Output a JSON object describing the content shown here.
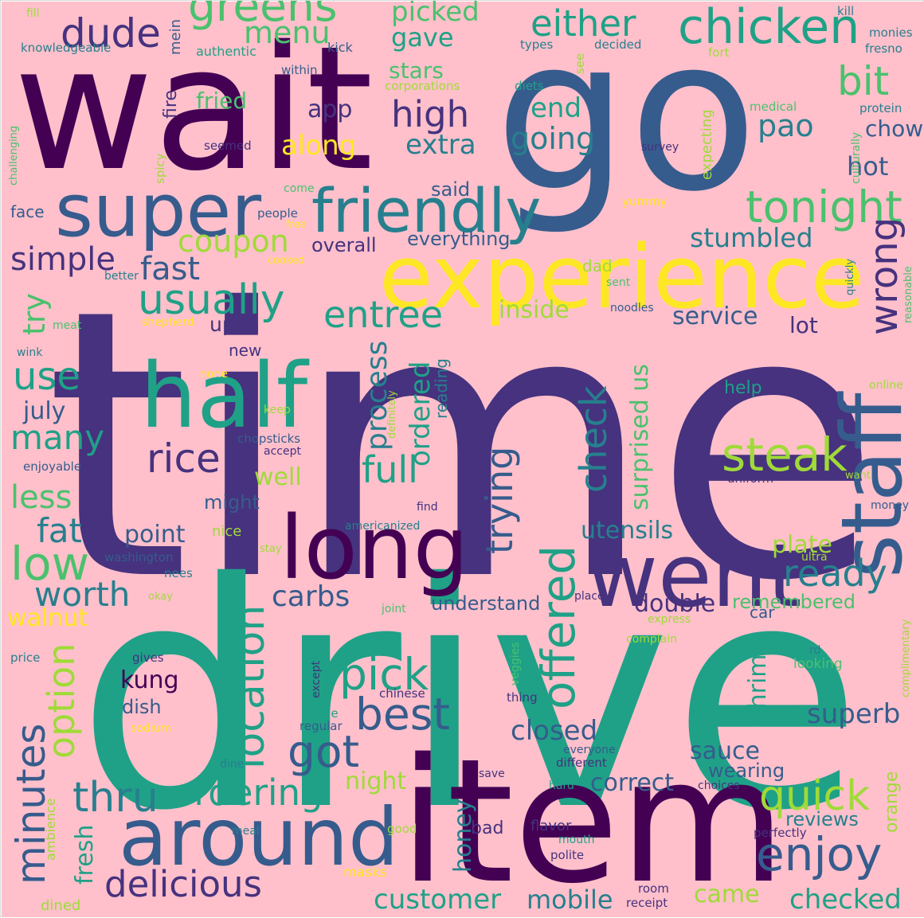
{
  "colors": {
    "background": "#ffc0cb",
    "palette": [
      "#440154",
      "#46327e",
      "#365c8d",
      "#277f8e",
      "#1fa187",
      "#4ac16d",
      "#a0da39",
      "#fde725"
    ]
  },
  "words": [
    {
      "text": "wait"
    },
    {
      "text": "go"
    },
    {
      "text": "time"
    },
    {
      "text": "drive"
    },
    {
      "text": "item"
    },
    {
      "text": "experience"
    },
    {
      "text": "super"
    },
    {
      "text": "friendly"
    },
    {
      "text": "half"
    },
    {
      "text": "staff"
    },
    {
      "text": "went"
    },
    {
      "text": "long"
    },
    {
      "text": "around"
    },
    {
      "text": "chicken"
    },
    {
      "text": "either"
    },
    {
      "text": "greens"
    },
    {
      "text": "dude"
    },
    {
      "text": "menu"
    },
    {
      "text": "bit"
    },
    {
      "text": "tonight"
    },
    {
      "text": "usually"
    },
    {
      "text": "coupon"
    },
    {
      "text": "simple"
    },
    {
      "text": "fast"
    },
    {
      "text": "entree"
    },
    {
      "text": "stumbled"
    },
    {
      "text": "wrong"
    },
    {
      "text": "use"
    },
    {
      "text": "many"
    },
    {
      "text": "rice"
    },
    {
      "text": "steak"
    },
    {
      "text": "full"
    },
    {
      "text": "check"
    },
    {
      "text": "trying"
    },
    {
      "text": "process"
    },
    {
      "text": "ordered"
    },
    {
      "text": "offered"
    },
    {
      "text": "location"
    },
    {
      "text": "pick"
    },
    {
      "text": "best"
    },
    {
      "text": "got"
    },
    {
      "text": "quick"
    },
    {
      "text": "enjoy"
    },
    {
      "text": "ready"
    },
    {
      "text": "minutes"
    },
    {
      "text": "thru"
    },
    {
      "text": "ordering"
    },
    {
      "text": "delicious"
    },
    {
      "text": "low"
    },
    {
      "text": "worth"
    },
    {
      "text": "less"
    },
    {
      "text": "fat"
    },
    {
      "text": "option"
    },
    {
      "text": "high"
    },
    {
      "text": "app"
    },
    {
      "text": "extra"
    },
    {
      "text": "going"
    },
    {
      "text": "end"
    },
    {
      "text": "pao"
    },
    {
      "text": "hot"
    },
    {
      "text": "chow"
    },
    {
      "text": "gave"
    },
    {
      "text": "picked"
    },
    {
      "text": "stars"
    },
    {
      "text": "fried"
    },
    {
      "text": "along"
    },
    {
      "text": "said"
    },
    {
      "text": "everything"
    },
    {
      "text": "overall"
    },
    {
      "text": "upon"
    },
    {
      "text": "lot"
    },
    {
      "text": "service"
    },
    {
      "text": "inside"
    },
    {
      "text": "surprised us"
    },
    {
      "text": "july"
    },
    {
      "text": "well"
    },
    {
      "text": "might"
    },
    {
      "text": "point"
    },
    {
      "text": "carbs"
    },
    {
      "text": "utensils"
    },
    {
      "text": "plate"
    },
    {
      "text": "double"
    },
    {
      "text": "remembered"
    },
    {
      "text": "kung"
    },
    {
      "text": "dish"
    },
    {
      "text": "closed"
    },
    {
      "text": "sauce"
    },
    {
      "text": "shrimp"
    },
    {
      "text": "superb"
    },
    {
      "text": "correct"
    },
    {
      "text": "wearing"
    },
    {
      "text": "night"
    },
    {
      "text": "honey"
    },
    {
      "text": "fresh"
    },
    {
      "text": "reviews"
    },
    {
      "text": "customer"
    },
    {
      "text": "mobile"
    },
    {
      "text": "came"
    },
    {
      "text": "checked"
    },
    {
      "text": "walnut"
    },
    {
      "text": "understand"
    },
    {
      "text": "try"
    },
    {
      "text": "face"
    },
    {
      "text": "new"
    },
    {
      "text": "help"
    },
    {
      "text": "reading"
    },
    {
      "text": "bad"
    },
    {
      "text": "flavor"
    },
    {
      "text": "orange"
    },
    {
      "text": "car"
    },
    {
      "text": "mein"
    },
    {
      "text": "kick"
    },
    {
      "text": "authentic"
    },
    {
      "text": "knowledgeable"
    },
    {
      "text": "within"
    },
    {
      "text": "corporations"
    },
    {
      "text": "diets"
    },
    {
      "text": "types"
    },
    {
      "text": "decided"
    },
    {
      "text": "fort"
    },
    {
      "text": "kill"
    },
    {
      "text": "monies"
    },
    {
      "text": "fresno"
    },
    {
      "text": "protein"
    },
    {
      "text": "medical"
    },
    {
      "text": "culturally"
    },
    {
      "text": "expecting"
    },
    {
      "text": "survey"
    },
    {
      "text": "yummy"
    },
    {
      "text": "seemed"
    },
    {
      "text": "spicy"
    },
    {
      "text": "challenging"
    },
    {
      "text": "come"
    },
    {
      "text": "people"
    },
    {
      "text": "free"
    },
    {
      "text": "cooked"
    },
    {
      "text": "better"
    },
    {
      "text": "dad"
    },
    {
      "text": "sent"
    },
    {
      "text": "noodles"
    },
    {
      "text": "quickly"
    },
    {
      "text": "reasonable"
    },
    {
      "text": "meat"
    },
    {
      "text": "shepherd"
    },
    {
      "text": "wink"
    },
    {
      "text": "none"
    },
    {
      "text": "keep"
    },
    {
      "text": "definitely"
    },
    {
      "text": "chopsticks"
    },
    {
      "text": "accept"
    },
    {
      "text": "enjoyable"
    },
    {
      "text": "online"
    },
    {
      "text": "uniform"
    },
    {
      "text": "want"
    },
    {
      "text": "money"
    },
    {
      "text": "find"
    },
    {
      "text": "americanized"
    },
    {
      "text": "nice"
    },
    {
      "text": "stay"
    },
    {
      "text": "washington"
    },
    {
      "text": "ultra"
    },
    {
      "text": "nees"
    },
    {
      "text": "okay"
    },
    {
      "text": "joint"
    },
    {
      "text": "place"
    },
    {
      "text": "express"
    },
    {
      "text": "complain"
    },
    {
      "text": "price"
    },
    {
      "text": "gives"
    },
    {
      "text": "veggies"
    },
    {
      "text": "except"
    },
    {
      "text": "chinese"
    },
    {
      "text": "thing"
    },
    {
      "text": "rd"
    },
    {
      "text": "looking"
    },
    {
      "text": "complimentary"
    },
    {
      "text": "scale"
    },
    {
      "text": "regular"
    },
    {
      "text": "sodium"
    },
    {
      "text": "everyone"
    },
    {
      "text": "different"
    },
    {
      "text": "dine"
    },
    {
      "text": "save"
    },
    {
      "text": "hard"
    },
    {
      "text": "choices"
    },
    {
      "text": "ambience"
    },
    {
      "text": "meal"
    },
    {
      "text": "good"
    },
    {
      "text": "mouth"
    },
    {
      "text": "polite"
    },
    {
      "text": "perfectly"
    },
    {
      "text": "masks"
    },
    {
      "text": "room"
    },
    {
      "text": "receipt"
    },
    {
      "text": "dined"
    },
    {
      "text": "fire"
    },
    {
      "text": "see"
    },
    {
      "text": "fill"
    }
  ]
}
